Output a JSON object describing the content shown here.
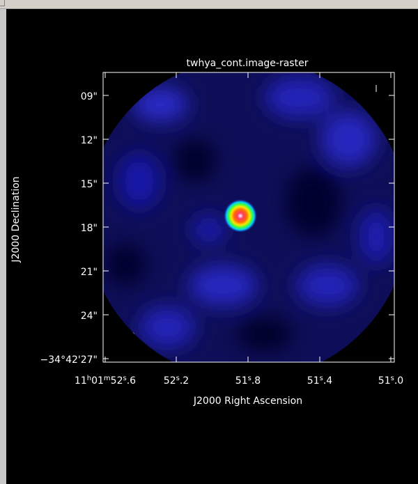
{
  "plot": {
    "title": "twhya_cont.image-raster",
    "xlabel": "J2000 Right Ascension",
    "ylabel": "J2000 Declination",
    "dec_ticks": [
      {
        "main": "09\"",
        "pre": ""
      },
      {
        "main": "12\"",
        "pre": ""
      },
      {
        "main": "15\"",
        "pre": ""
      },
      {
        "main": "18\"",
        "pre": ""
      },
      {
        "main": "21\"",
        "pre": ""
      },
      {
        "main": "24\"",
        "pre": ""
      },
      {
        "main": "−34°42'27\"",
        "pre": ""
      }
    ],
    "ra_ticks": [
      {
        "parts": [
          [
            "11",
            ""
          ],
          [
            "h",
            "sup"
          ],
          [
            "01",
            ""
          ],
          [
            "m",
            "sup"
          ],
          [
            "52",
            ""
          ],
          [
            "s",
            "sup"
          ],
          [
            ".6",
            ""
          ]
        ]
      },
      {
        "parts": [
          [
            "52",
            ""
          ],
          [
            "s",
            "sup"
          ],
          [
            ".2",
            ""
          ]
        ]
      },
      {
        "parts": [
          [
            "51",
            ""
          ],
          [
            "s",
            "sup"
          ],
          [
            ".8",
            ""
          ]
        ]
      },
      {
        "parts": [
          [
            "51",
            ""
          ],
          [
            "s",
            "sup"
          ],
          [
            ".4",
            ""
          ]
        ]
      },
      {
        "parts": [
          [
            "51",
            ""
          ],
          [
            "s",
            "sup"
          ],
          [
            ".0",
            ""
          ]
        ]
      }
    ],
    "colors": {
      "background": "#000000",
      "axes": "#ffffff",
      "map_low": "#0a0a3a",
      "map_mid": "#1a22b0",
      "source_core": "#ff2a4a"
    }
  }
}
